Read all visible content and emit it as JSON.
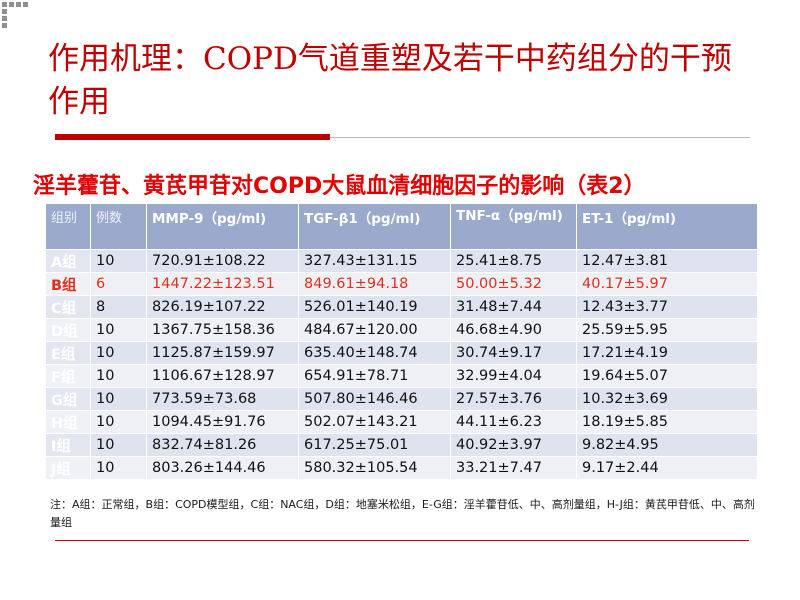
{
  "slide": {
    "title": "作用机理：COPD气道重塑及若干中药组分的干预作用",
    "subtitle": "淫羊藿苷、黄芪甲苷对COPD大鼠血清细胞因子的影响（表2）",
    "accent_color": "#c00000",
    "highlight_color": "#e0301b",
    "table": {
      "headers": [
        "组别",
        "例数",
        "MMP-9（pg/ml)",
        "TGF-β1（pg/ml)",
        "TNF-α（pg/ml)",
        "ET-1（pg/ml)"
      ],
      "header_color": "#9aa9cc",
      "rows": [
        {
          "group": "A组",
          "n": "10",
          "mmp9": "720.91±108.22",
          "tgfb1": "327.43±131.15",
          "tnfa": "25.41±8.75",
          "et1": "12.47±3.81"
        },
        {
          "group": "B组",
          "n": "6",
          "mmp9": "1447.22±123.51",
          "tgfb1": "849.61±94.18",
          "tnfa": "50.00±5.32",
          "et1": "40.17±5.97"
        },
        {
          "group": "C组",
          "n": "8",
          "mmp9": "826.19±107.22",
          "tgfb1": "526.01±140.19",
          "tnfa": "31.48±7.44",
          "et1": "12.43±3.77"
        },
        {
          "group": "D组",
          "n": "10",
          "mmp9": "1367.75±158.36",
          "tgfb1": "484.67±120.00",
          "tnfa": "46.68±4.90",
          "et1": "25.59±5.95"
        },
        {
          "group": "E组",
          "n": "10",
          "mmp9": "1125.87±159.97",
          "tgfb1": "635.40±148.74",
          "tnfa": "30.74±9.17",
          "et1": "17.21±4.19"
        },
        {
          "group": "F组",
          "n": "10",
          "mmp9": "1106.67±128.97",
          "tgfb1": "654.91±78.71",
          "tnfa": "32.99±4.04",
          "et1": "19.64±5.07"
        },
        {
          "group": "G组",
          "n": "10",
          "mmp9": "773.59±73.68",
          "tgfb1": "507.80±146.46",
          "tnfa": "27.57±3.76",
          "et1": "10.32±3.69"
        },
        {
          "group": "H组",
          "n": "10",
          "mmp9": "1094.45±91.76",
          "tgfb1": "502.07±143.21",
          "tnfa": "44.11±6.23",
          "et1": "18.19±5.85"
        },
        {
          "group": "I组",
          "n": "10",
          "mmp9": "832.74±81.26",
          "tgfb1": "617.25±75.01",
          "tnfa": "40.92±3.97",
          "et1": "9.82±4.95"
        },
        {
          "group": "J组",
          "n": "10",
          "mmp9": "803.26±144.46",
          "tgfb1": "580.32±105.54",
          "tnfa": "33.21±7.47",
          "et1": "9.17±2.44"
        }
      ]
    },
    "note": "注：A组：正常组，B组：COPD模型组，C组：NAC组，D组：地塞米松组，E-G组：淫羊藿苷低、中、高剂量组，H-J组：黄芪甲苷低、中、高剂量组"
  }
}
